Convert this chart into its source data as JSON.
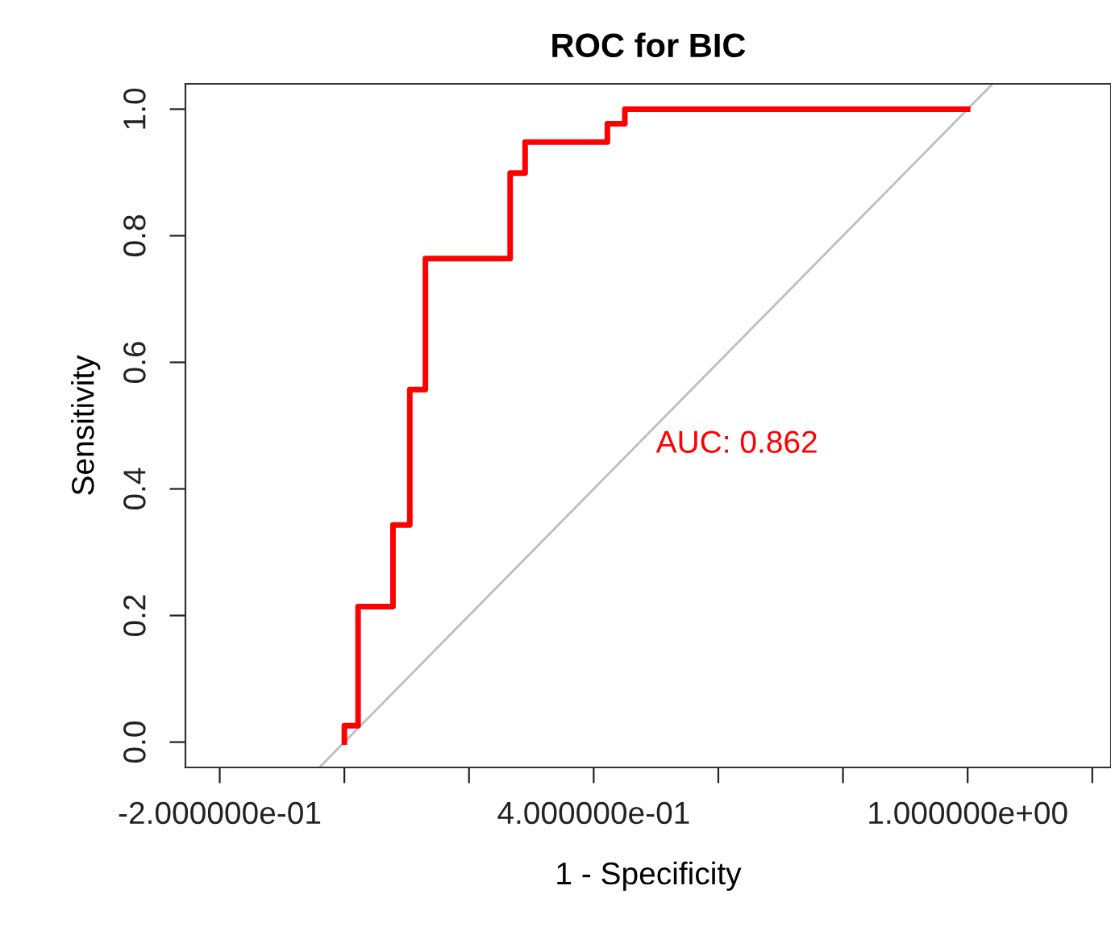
{
  "chart_data": {
    "type": "line",
    "title": "ROC for BIC",
    "xlabel": "1 - Specificity",
    "ylabel": "Sensitivity",
    "series": [
      {
        "color": "#bebebe",
        "x": [
          -0.04,
          1.04
        ],
        "values": [
          -0.04,
          1.04
        ]
      },
      {
        "color": "#ff0000",
        "x": [
          0,
          0,
          0.022,
          0.022,
          0.078,
          0.078,
          0.105,
          0.105,
          0.13,
          0.13,
          0.266,
          0.266,
          0.29,
          0.29,
          0.422,
          0.422,
          0.45,
          0.45,
          1.0
        ],
        "values": [
          0,
          0.026,
          0.026,
          0.214,
          0.214,
          0.343,
          0.343,
          0.557,
          0.557,
          0.764,
          0.764,
          0.899,
          0.899,
          0.948,
          0.948,
          0.977,
          0.977,
          1.0,
          1.0
        ]
      }
    ],
    "annotations": [
      "AUC: 0.862"
    ],
    "xlim": [
      -0.255,
      1.23
    ],
    "ylim": [
      -0.04,
      1.04
    ],
    "xticks": [
      {
        "value": -0.2,
        "label": "-2.000000e-01"
      },
      {
        "value": 0.0,
        "label": null
      },
      {
        "value": 0.2,
        "label": null
      },
      {
        "value": 0.4,
        "label": "4.000000e-01"
      },
      {
        "value": 0.6,
        "label": null
      },
      {
        "value": 0.8,
        "label": null
      },
      {
        "value": 1.0,
        "label": "1.000000e+00"
      },
      {
        "value": 1.2,
        "label": null
      }
    ],
    "yticks": [
      {
        "value": 0.0,
        "label": "0.0"
      },
      {
        "value": 0.2,
        "label": "0.2"
      },
      {
        "value": 0.4,
        "label": "0.4"
      },
      {
        "value": 0.6,
        "label": "0.6"
      },
      {
        "value": 0.8,
        "label": "0.8"
      },
      {
        "value": 1.0,
        "label": "1.0"
      }
    ],
    "grid": false,
    "legend": false,
    "marker": "none",
    "line_style": "solid"
  }
}
